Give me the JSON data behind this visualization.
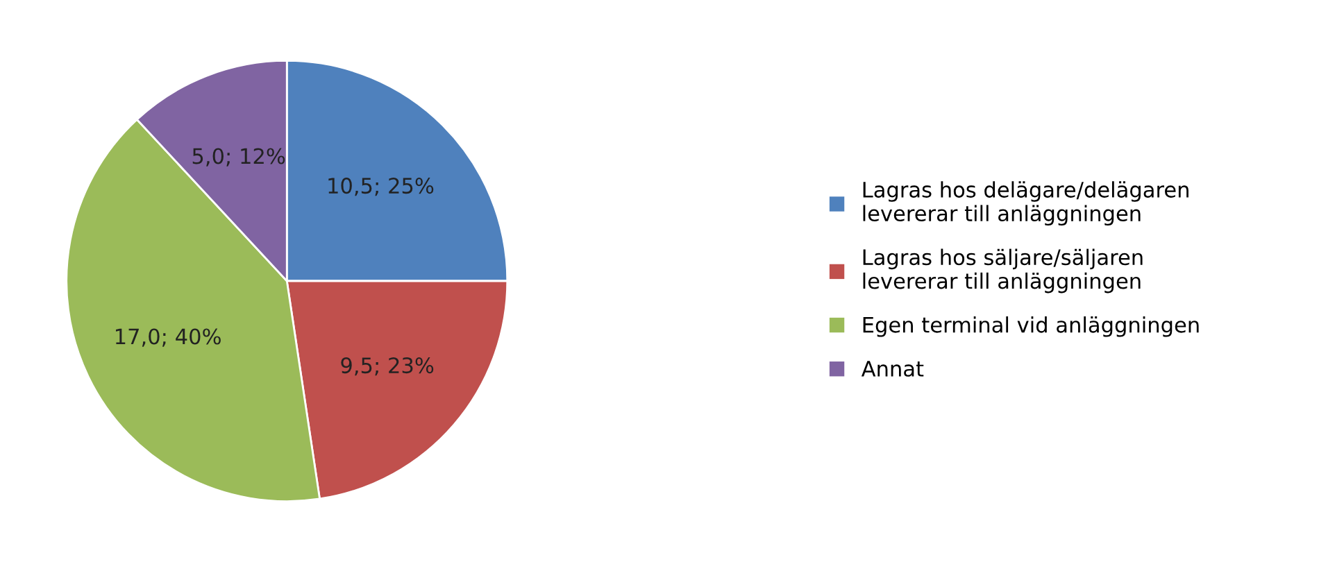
{
  "chart_data": {
    "type": "pie",
    "categories": [
      "Lagras hos delägare/delägaren levererar till anläggningen",
      "Lagras hos säljare/säljaren levererar till anläggningen",
      "Egen terminal vid anläggningen",
      "Annat"
    ],
    "values": [
      10.5,
      9.5,
      17.0,
      5.0
    ],
    "value_labels": [
      "10,5; 25%",
      "9,5; 23%",
      "17,0; 40%",
      "5,0; 12%"
    ],
    "colors": [
      "#4f81bd",
      "#c0504d",
      "#9bbb59",
      "#8064a2"
    ],
    "legend": "right"
  }
}
